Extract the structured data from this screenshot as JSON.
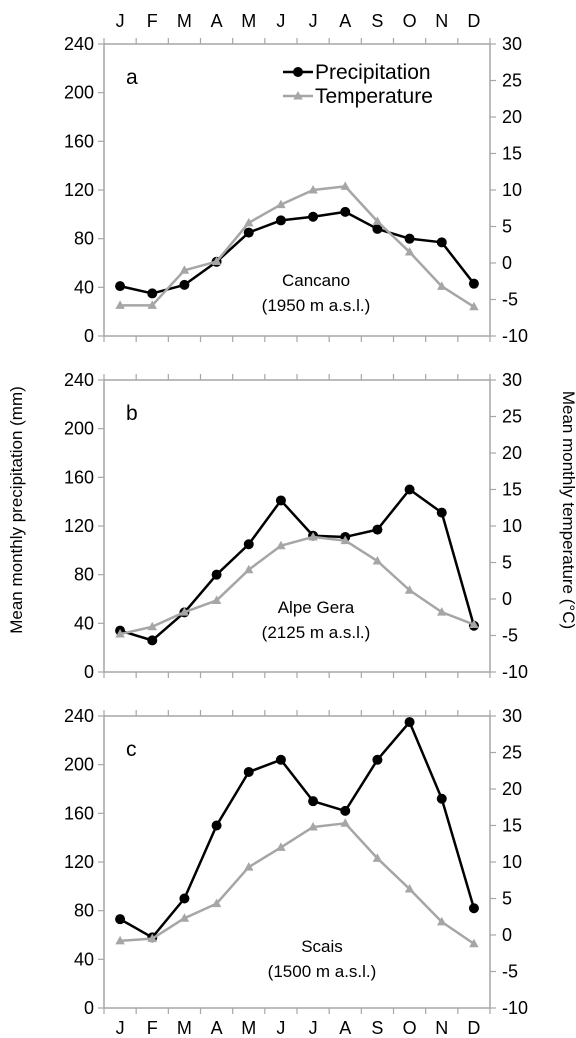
{
  "chart_data": {
    "type": "line",
    "months": [
      "J",
      "F",
      "M",
      "A",
      "M",
      "J",
      "J",
      "A",
      "S",
      "O",
      "N",
      "D"
    ],
    "ylabel_left": "Mean monthly precipitation (mm)",
    "ylabel_right": "Mean monthly temperature (°C)",
    "left_ylim": [
      0,
      240
    ],
    "left_ticks": [
      "0",
      "40",
      "80",
      "120",
      "160",
      "200",
      "240"
    ],
    "right_ylim": [
      -10,
      30
    ],
    "right_ticks": [
      "-10",
      "-5",
      "0",
      "5",
      "10",
      "15",
      "20",
      "25",
      "30"
    ],
    "legend": {
      "position": "top-right of panel a",
      "entries": [
        {
          "label": "Precipitation",
          "color": "#000000",
          "marker": "circle"
        },
        {
          "label": "Temperature",
          "color": "#a6a6a6",
          "marker": "triangle"
        }
      ]
    },
    "panels": [
      {
        "letter": "a",
        "station": "Cancano",
        "elevation": "(1950 m a.s.l.)",
        "series": [
          {
            "name": "Precipitation",
            "axis": "left",
            "values": [
              41,
              35,
              42,
              61,
              85,
              95,
              98,
              102,
              88,
              80,
              77,
              43
            ]
          },
          {
            "name": "Temperature",
            "axis": "right",
            "values": [
              -5.8,
              -5.8,
              -1.0,
              0.2,
              5.5,
              8.0,
              10.0,
              10.5,
              5.7,
              1.5,
              -3.2,
              -6.0
            ]
          }
        ]
      },
      {
        "letter": "b",
        "station": "Alpe Gera",
        "elevation": "(2125 m a.s.l.)",
        "series": [
          {
            "name": "Precipitation",
            "axis": "left",
            "values": [
              34,
              26,
              49,
              80,
              105,
              141,
              112,
              111,
              117,
              150,
              131,
              38
            ]
          },
          {
            "name": "Temperature",
            "axis": "right",
            "values": [
              -4.8,
              -3.8,
              -1.8,
              -0.2,
              4.0,
              7.3,
              8.5,
              8.0,
              5.2,
              1.2,
              -1.8,
              -3.5
            ]
          }
        ]
      },
      {
        "letter": "c",
        "station": "Scais",
        "elevation": "(1500 m a.s.l.)",
        "series": [
          {
            "name": "Precipitation",
            "axis": "left",
            "values": [
              73,
              58,
              90,
              150,
              194,
              204,
              170,
              162,
              204,
              235,
              172,
              82
            ]
          },
          {
            "name": "Temperature",
            "axis": "right",
            "values": [
              -0.8,
              -0.5,
              2.3,
              4.3,
              9.3,
              12.0,
              14.8,
              15.3,
              10.5,
              6.3,
              1.8,
              -1.2
            ]
          }
        ]
      }
    ],
    "grid": false
  }
}
